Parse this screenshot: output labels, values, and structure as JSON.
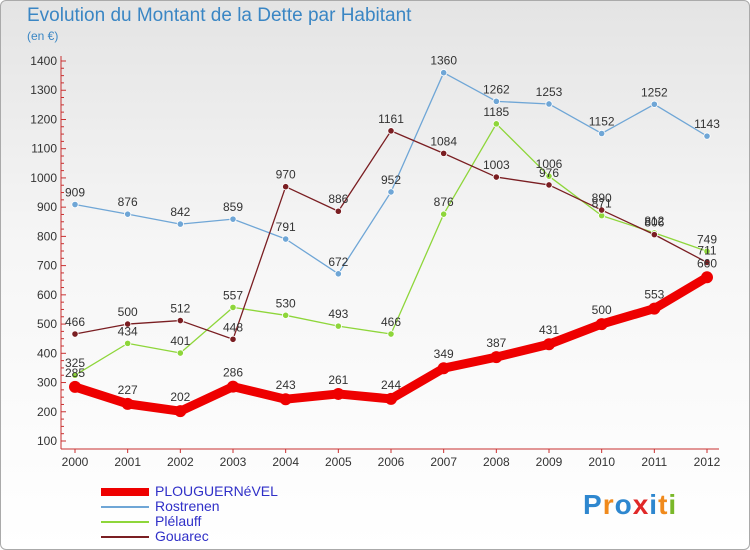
{
  "header": {
    "title": "Evolution du Montant de la Dette par Habitant",
    "subtitle": "(en €)"
  },
  "brand": {
    "text": "Proxiti",
    "letter_colors": [
      "#2e87cf",
      "#f08a1c",
      "#2e87cf",
      "#e02828",
      "#2e87cf",
      "#f08a1c",
      "#7ab829"
    ]
  },
  "chart_data": {
    "type": "line",
    "x": [
      "2000",
      "2001",
      "2002",
      "2003",
      "2004",
      "2005",
      "2006",
      "2007",
      "2008",
      "2009",
      "2010",
      "2011",
      "2012"
    ],
    "ylim": [
      100,
      1400
    ],
    "yticks": [
      100,
      200,
      300,
      400,
      500,
      600,
      700,
      800,
      900,
      1000,
      1100,
      1200,
      1300,
      1400
    ],
    "grid": false,
    "legend": "bottom-left",
    "series": [
      {
        "name": "PLOUGUERNéVEL",
        "color": "#ee0000",
        "emphasis": true,
        "values": [
          285,
          227,
          202,
          286,
          243,
          261,
          244,
          349,
          387,
          431,
          500,
          553,
          660
        ]
      },
      {
        "name": "Rostrenen",
        "color": "#6fa6d6",
        "emphasis": false,
        "values": [
          909,
          876,
          842,
          859,
          791,
          672,
          952,
          1360,
          1262,
          1253,
          1152,
          1252,
          1143
        ]
      },
      {
        "name": "Plélauff",
        "color": "#8ed63a",
        "emphasis": false,
        "values": [
          325,
          434,
          401,
          557,
          530,
          493,
          466,
          876,
          1185,
          1006,
          871,
          812,
          749
        ]
      },
      {
        "name": "Gouarec",
        "color": "#7a1e22",
        "emphasis": false,
        "values": [
          466,
          500,
          512,
          448,
          970,
          886,
          1161,
          1084,
          1003,
          976,
          890,
          806,
          711
        ]
      }
    ]
  }
}
